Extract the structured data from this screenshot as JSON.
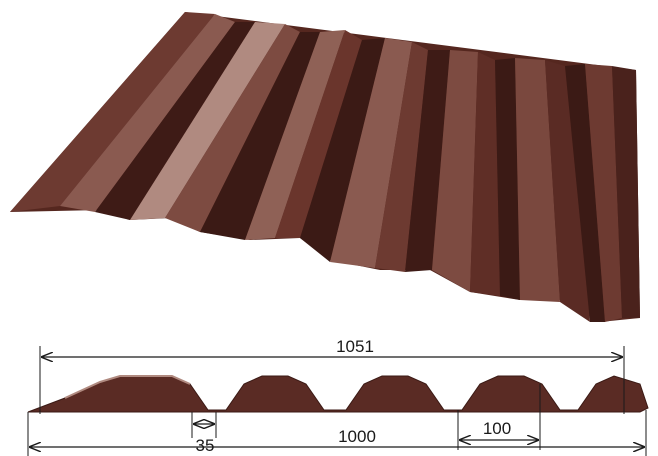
{
  "dimensions": {
    "overall_width": "1051",
    "useful_width": "1000",
    "rib_pitch": "100",
    "rib_top_width": "35"
  },
  "colors": {
    "sheet_base": "#5a2b24",
    "sheet_dark": "#3b1a15",
    "sheet_light": "#8a5a50",
    "sheet_highlight": "#b08a80",
    "dimension_line": "#1a1a1a",
    "background": "#ffffff"
  }
}
